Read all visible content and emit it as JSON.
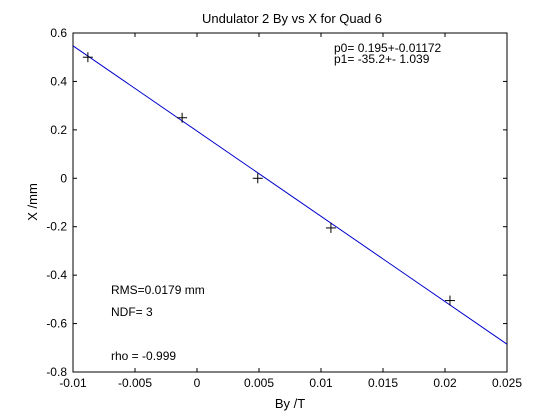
{
  "chart_data": {
    "type": "scatter",
    "title": "Undulator 2 By vs X for Quad 6",
    "xlabel": "By /T",
    "ylabel": "X /mm",
    "xlim": [
      -0.01,
      0.025
    ],
    "ylim": [
      -0.8,
      0.6
    ],
    "xticks": [
      -0.01,
      -0.005,
      0,
      0.005,
      0.01,
      0.015,
      0.02,
      0.025
    ],
    "xtick_labels": [
      "-0.01",
      "-0.005",
      "0",
      "0.005",
      "0.01",
      "0.015",
      "0.02",
      "0.025"
    ],
    "yticks": [
      -0.8,
      -0.6,
      -0.4,
      -0.2,
      0,
      0.2,
      0.4,
      0.6
    ],
    "ytick_labels": [
      "-0.8",
      "-0.6",
      "-0.4",
      "-0.2",
      "0",
      "0.2",
      "0.4",
      "0.6"
    ],
    "grid": false,
    "points": {
      "marker": "plus",
      "x": [
        -0.0088,
        -0.0012,
        0.0049,
        0.0108,
        0.0204
      ],
      "y": [
        0.5,
        0.25,
        0.0,
        -0.205,
        -0.505
      ]
    },
    "fit_line": {
      "color": "#0000cc",
      "x": [
        -0.01,
        0.025
      ],
      "y": [
        0.547,
        -0.685
      ]
    },
    "annotations": [
      {
        "key": "p0",
        "text": "p0=  0.195+-0.01172"
      },
      {
        "key": "p1",
        "text": "p1=  -35.2+- 1.039"
      },
      {
        "key": "rms",
        "text": "RMS=0.0179 mm"
      },
      {
        "key": "ndf",
        "text": "NDF=    3"
      },
      {
        "key": "rho",
        "text": "rho     = -0.999"
      }
    ]
  }
}
